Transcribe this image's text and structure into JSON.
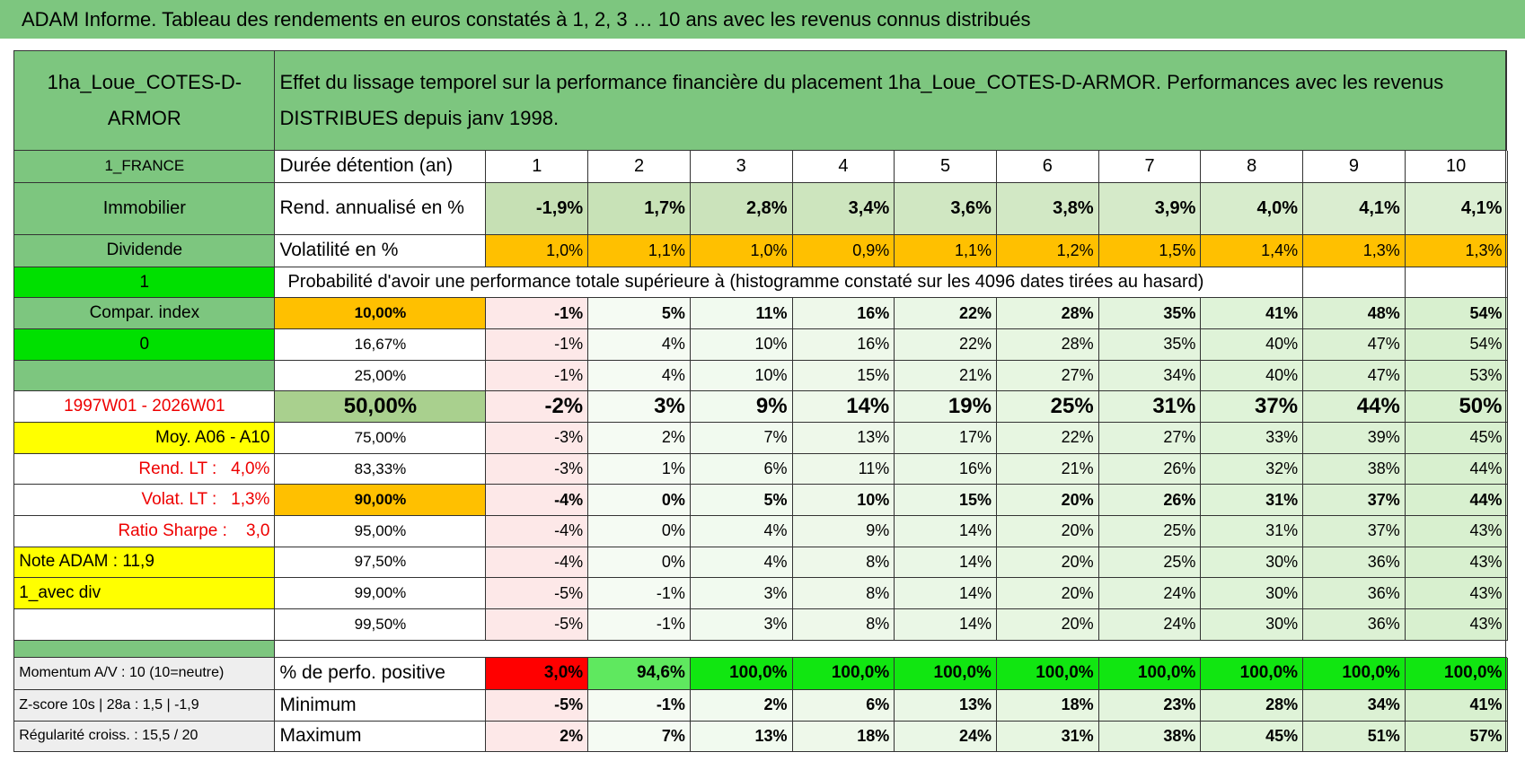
{
  "title": "ADAM Informe. Tableau des rendements en euros constatés à 1, 2, 3 … 10 ans avec les revenus connus distribués",
  "header": {
    "name": "1ha_Loue_COTES-D-ARMOR",
    "description": "Effet du lissage temporel sur la performance financière du placement 1ha_Loue_COTES-D-ARMOR. Performances avec les revenus DISTRIBUES depuis janv 1998."
  },
  "rows": [
    {
      "label": "1_FRANCE",
      "name": "Durée détention (an)",
      "values": [
        "1",
        "2",
        "3",
        "4",
        "5",
        "6",
        "7",
        "8",
        "9",
        "10"
      ]
    },
    {
      "label": "Immobilier",
      "name": "Rend. annualisé en %",
      "values": [
        "-1,9%",
        "1,7%",
        "2,8%",
        "3,4%",
        "3,6%",
        "3,8%",
        "3,9%",
        "4,0%",
        "4,1%",
        "4,1%"
      ]
    },
    {
      "label": "Dividende",
      "name": "Volatilité en %",
      "values": [
        "1,0%",
        "1,1%",
        "1,0%",
        "0,9%",
        "1,1%",
        "1,2%",
        "1,5%",
        "1,4%",
        "1,3%",
        "1,3%"
      ]
    },
    {
      "label": "1",
      "name": "Probabilité d'avoir une performance totale supérieure à (histogramme constaté sur les 4096 dates tirées au hasard)"
    },
    {
      "label": "Compar. index",
      "name": "10,00%",
      "values": [
        "-1%",
        "5%",
        "11%",
        "16%",
        "22%",
        "28%",
        "35%",
        "41%",
        "48%",
        "54%"
      ]
    },
    {
      "label": "0",
      "name": "16,67%",
      "values": [
        "-1%",
        "4%",
        "10%",
        "16%",
        "22%",
        "28%",
        "35%",
        "40%",
        "47%",
        "54%"
      ]
    },
    {
      "name": "25,00%",
      "values": [
        "-1%",
        "4%",
        "10%",
        "15%",
        "21%",
        "27%",
        "34%",
        "40%",
        "47%",
        "53%"
      ]
    },
    {
      "label": "1997W01 - 2026W01",
      "name": "50,00%",
      "values": [
        "-2%",
        "3%",
        "9%",
        "14%",
        "19%",
        "25%",
        "31%",
        "37%",
        "44%",
        "50%"
      ]
    },
    {
      "label": "Moy. A06 - A10",
      "name": "75,00%",
      "values": [
        "-3%",
        "2%",
        "7%",
        "13%",
        "17%",
        "22%",
        "27%",
        "33%",
        "39%",
        "45%"
      ]
    },
    {
      "label": "Rend. LT :   4,0%",
      "name": "83,33%",
      "values": [
        "-3%",
        "1%",
        "6%",
        "11%",
        "16%",
        "21%",
        "26%",
        "32%",
        "38%",
        "44%"
      ]
    },
    {
      "label": "Volat. LT :   1,3%",
      "name": "90,00%",
      "values": [
        "-4%",
        "0%",
        "5%",
        "10%",
        "15%",
        "20%",
        "26%",
        "31%",
        "37%",
        "44%"
      ]
    },
    {
      "label": "Ratio Sharpe :    3,0",
      "name": "95,00%",
      "values": [
        "-4%",
        "0%",
        "4%",
        "9%",
        "14%",
        "20%",
        "25%",
        "31%",
        "37%",
        "43%"
      ]
    },
    {
      "label": "Note ADAM : 11,9",
      "name": "97,50%",
      "values": [
        "-4%",
        "0%",
        "4%",
        "8%",
        "14%",
        "20%",
        "25%",
        "30%",
        "36%",
        "43%"
      ]
    },
    {
      "label": "1_avec div",
      "name": "99,00%",
      "values": [
        "-5%",
        "-1%",
        "3%",
        "8%",
        "14%",
        "20%",
        "24%",
        "30%",
        "36%",
        "43%"
      ]
    },
    {
      "name": "99,50%",
      "values": [
        "-5%",
        "-1%",
        "3%",
        "8%",
        "14%",
        "20%",
        "24%",
        "30%",
        "36%",
        "43%"
      ]
    },
    {
      "label": "Momentum A/V : 10 (10=neutre)",
      "name": "% de perfo. positive",
      "values": [
        "3,0%",
        "94,6%",
        "100,0%",
        "100,0%",
        "100,0%",
        "100,0%",
        "100,0%",
        "100,0%",
        "100,0%",
        "100,0%"
      ]
    },
    {
      "label": "Z-score 10s | 28a : 1,5 | -1,9",
      "name": "Minimum",
      "values": [
        "-5%",
        "-1%",
        "2%",
        "6%",
        "13%",
        "18%",
        "23%",
        "28%",
        "34%",
        "41%"
      ]
    },
    {
      "label": "Régularité croiss. : 15,5 / 20",
      "name": "Maximum",
      "values": [
        "2%",
        "7%",
        "13%",
        "18%",
        "24%",
        "31%",
        "38%",
        "45%",
        "51%",
        "57%"
      ]
    }
  ]
}
